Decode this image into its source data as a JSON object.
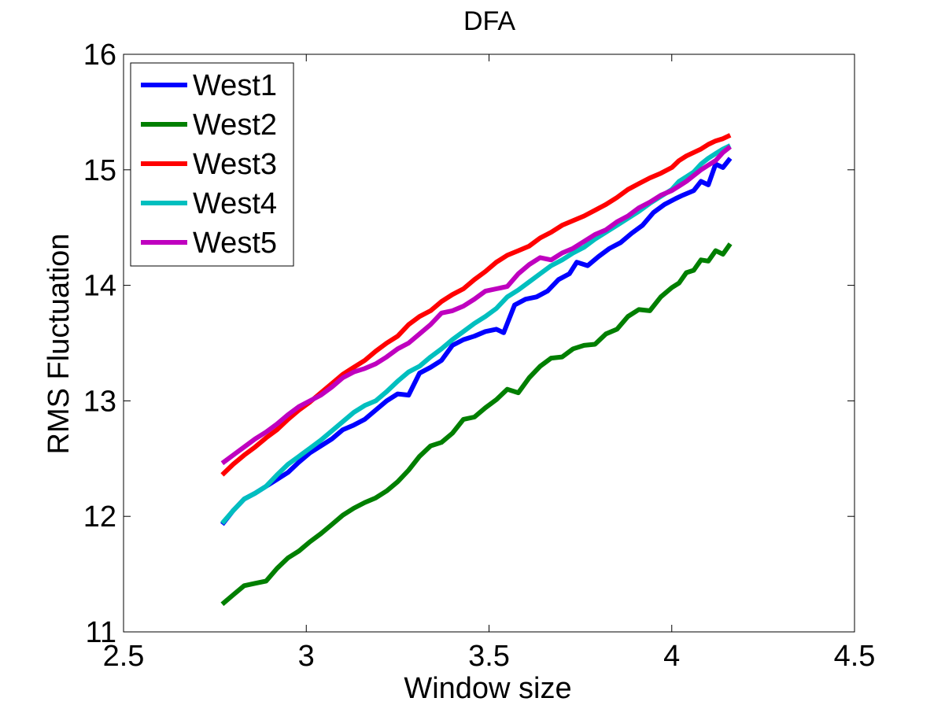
{
  "chart_data": {
    "type": "line",
    "title": "DFA",
    "xlabel": "Window size",
    "ylabel": "RMS Fluctuation",
    "xlim": [
      2.5,
      4.5
    ],
    "ylim": [
      11,
      16
    ],
    "xticks": [
      2.5,
      3,
      3.5,
      4,
      4.5
    ],
    "xtick_labels": [
      "2.5",
      "3",
      "3.5",
      "4",
      "4.5"
    ],
    "yticks": [
      11,
      12,
      13,
      14,
      15,
      16
    ],
    "ytick_labels": [
      "11",
      "12",
      "13",
      "14",
      "15",
      "16"
    ],
    "grid": false,
    "legend_position": "top-left",
    "series": [
      {
        "name": "West1",
        "color": "#0000FF",
        "points": [
          [
            2.77,
            11.93
          ],
          [
            2.8,
            12.05
          ],
          [
            2.83,
            12.15
          ],
          [
            2.86,
            12.2
          ],
          [
            2.89,
            12.26
          ],
          [
            2.92,
            12.32
          ],
          [
            2.95,
            12.38
          ],
          [
            2.98,
            12.47
          ],
          [
            3.01,
            12.55
          ],
          [
            3.04,
            12.61
          ],
          [
            3.07,
            12.67
          ],
          [
            3.1,
            12.75
          ],
          [
            3.13,
            12.79
          ],
          [
            3.16,
            12.84
          ],
          [
            3.19,
            12.92
          ],
          [
            3.22,
            13.0
          ],
          [
            3.25,
            13.06
          ],
          [
            3.28,
            13.05
          ],
          [
            3.31,
            13.24
          ],
          [
            3.34,
            13.29
          ],
          [
            3.37,
            13.35
          ],
          [
            3.4,
            13.48
          ],
          [
            3.43,
            13.53
          ],
          [
            3.46,
            13.56
          ],
          [
            3.49,
            13.6
          ],
          [
            3.52,
            13.62
          ],
          [
            3.54,
            13.59
          ],
          [
            3.57,
            13.83
          ],
          [
            3.6,
            13.88
          ],
          [
            3.63,
            13.9
          ],
          [
            3.66,
            13.95
          ],
          [
            3.69,
            14.05
          ],
          [
            3.72,
            14.1
          ],
          [
            3.74,
            14.2
          ],
          [
            3.77,
            14.17
          ],
          [
            3.8,
            14.25
          ],
          [
            3.83,
            14.32
          ],
          [
            3.86,
            14.37
          ],
          [
            3.89,
            14.45
          ],
          [
            3.92,
            14.52
          ],
          [
            3.95,
            14.63
          ],
          [
            3.98,
            14.7
          ],
          [
            4.01,
            14.75
          ],
          [
            4.03,
            14.78
          ],
          [
            4.06,
            14.82
          ],
          [
            4.08,
            14.9
          ],
          [
            4.1,
            14.87
          ],
          [
            4.12,
            15.05
          ],
          [
            4.14,
            15.02
          ],
          [
            4.16,
            15.1
          ]
        ]
      },
      {
        "name": "West2",
        "color": "#007F00",
        "points": [
          [
            2.77,
            11.24
          ],
          [
            2.8,
            11.32
          ],
          [
            2.83,
            11.4
          ],
          [
            2.86,
            11.42
          ],
          [
            2.89,
            11.44
          ],
          [
            2.92,
            11.55
          ],
          [
            2.95,
            11.64
          ],
          [
            2.98,
            11.7
          ],
          [
            3.01,
            11.78
          ],
          [
            3.04,
            11.85
          ],
          [
            3.07,
            11.93
          ],
          [
            3.1,
            12.01
          ],
          [
            3.13,
            12.07
          ],
          [
            3.16,
            12.12
          ],
          [
            3.19,
            12.16
          ],
          [
            3.22,
            12.22
          ],
          [
            3.25,
            12.3
          ],
          [
            3.28,
            12.4
          ],
          [
            3.31,
            12.52
          ],
          [
            3.34,
            12.61
          ],
          [
            3.37,
            12.64
          ],
          [
            3.4,
            12.72
          ],
          [
            3.43,
            12.84
          ],
          [
            3.46,
            12.86
          ],
          [
            3.49,
            12.94
          ],
          [
            3.52,
            13.01
          ],
          [
            3.55,
            13.1
          ],
          [
            3.58,
            13.07
          ],
          [
            3.61,
            13.2
          ],
          [
            3.64,
            13.3
          ],
          [
            3.67,
            13.37
          ],
          [
            3.7,
            13.38
          ],
          [
            3.73,
            13.45
          ],
          [
            3.76,
            13.48
          ],
          [
            3.79,
            13.49
          ],
          [
            3.82,
            13.58
          ],
          [
            3.85,
            13.62
          ],
          [
            3.88,
            13.73
          ],
          [
            3.91,
            13.79
          ],
          [
            3.94,
            13.78
          ],
          [
            3.97,
            13.9
          ],
          [
            4.0,
            13.98
          ],
          [
            4.02,
            14.02
          ],
          [
            4.04,
            14.11
          ],
          [
            4.06,
            14.13
          ],
          [
            4.08,
            14.22
          ],
          [
            4.1,
            14.21
          ],
          [
            4.12,
            14.3
          ],
          [
            4.14,
            14.27
          ],
          [
            4.16,
            14.36
          ]
        ]
      },
      {
        "name": "West3",
        "color": "#FF0000",
        "points": [
          [
            2.77,
            12.36
          ],
          [
            2.8,
            12.45
          ],
          [
            2.83,
            12.53
          ],
          [
            2.86,
            12.6
          ],
          [
            2.89,
            12.68
          ],
          [
            2.92,
            12.75
          ],
          [
            2.95,
            12.84
          ],
          [
            2.98,
            12.92
          ],
          [
            3.01,
            12.99
          ],
          [
            3.04,
            13.07
          ],
          [
            3.07,
            13.15
          ],
          [
            3.1,
            13.23
          ],
          [
            3.13,
            13.29
          ],
          [
            3.16,
            13.35
          ],
          [
            3.19,
            13.43
          ],
          [
            3.22,
            13.5
          ],
          [
            3.25,
            13.56
          ],
          [
            3.28,
            13.66
          ],
          [
            3.31,
            13.73
          ],
          [
            3.34,
            13.78
          ],
          [
            3.37,
            13.86
          ],
          [
            3.4,
            13.92
          ],
          [
            3.43,
            13.97
          ],
          [
            3.46,
            14.05
          ],
          [
            3.49,
            14.12
          ],
          [
            3.52,
            14.2
          ],
          [
            3.55,
            14.26
          ],
          [
            3.58,
            14.3
          ],
          [
            3.61,
            14.34
          ],
          [
            3.64,
            14.41
          ],
          [
            3.67,
            14.46
          ],
          [
            3.7,
            14.52
          ],
          [
            3.73,
            14.56
          ],
          [
            3.76,
            14.6
          ],
          [
            3.79,
            14.65
          ],
          [
            3.82,
            14.7
          ],
          [
            3.85,
            14.76
          ],
          [
            3.88,
            14.83
          ],
          [
            3.91,
            14.88
          ],
          [
            3.94,
            14.93
          ],
          [
            3.97,
            14.97
          ],
          [
            4.0,
            15.02
          ],
          [
            4.02,
            15.08
          ],
          [
            4.04,
            15.12
          ],
          [
            4.06,
            15.15
          ],
          [
            4.08,
            15.18
          ],
          [
            4.1,
            15.22
          ],
          [
            4.12,
            15.25
          ],
          [
            4.14,
            15.27
          ],
          [
            4.16,
            15.3
          ]
        ]
      },
      {
        "name": "West4",
        "color": "#00BFBF",
        "points": [
          [
            2.77,
            11.94
          ],
          [
            2.8,
            12.05
          ],
          [
            2.83,
            12.15
          ],
          [
            2.86,
            12.2
          ],
          [
            2.89,
            12.26
          ],
          [
            2.92,
            12.36
          ],
          [
            2.95,
            12.45
          ],
          [
            2.98,
            12.52
          ],
          [
            3.01,
            12.59
          ],
          [
            3.04,
            12.66
          ],
          [
            3.07,
            12.74
          ],
          [
            3.1,
            12.82
          ],
          [
            3.13,
            12.9
          ],
          [
            3.16,
            12.96
          ],
          [
            3.19,
            13.0
          ],
          [
            3.22,
            13.08
          ],
          [
            3.25,
            13.17
          ],
          [
            3.28,
            13.25
          ],
          [
            3.31,
            13.3
          ],
          [
            3.34,
            13.38
          ],
          [
            3.37,
            13.45
          ],
          [
            3.4,
            13.53
          ],
          [
            3.43,
            13.6
          ],
          [
            3.46,
            13.67
          ],
          [
            3.49,
            13.73
          ],
          [
            3.52,
            13.8
          ],
          [
            3.55,
            13.9
          ],
          [
            3.58,
            13.96
          ],
          [
            3.61,
            14.03
          ],
          [
            3.64,
            14.1
          ],
          [
            3.67,
            14.17
          ],
          [
            3.7,
            14.22
          ],
          [
            3.73,
            14.28
          ],
          [
            3.76,
            14.33
          ],
          [
            3.79,
            14.4
          ],
          [
            3.82,
            14.46
          ],
          [
            3.85,
            14.52
          ],
          [
            3.88,
            14.58
          ],
          [
            3.91,
            14.64
          ],
          [
            3.94,
            14.71
          ],
          [
            3.97,
            14.77
          ],
          [
            4.0,
            14.83
          ],
          [
            4.02,
            14.9
          ],
          [
            4.04,
            14.94
          ],
          [
            4.06,
            14.98
          ],
          [
            4.08,
            15.05
          ],
          [
            4.1,
            15.1
          ],
          [
            4.12,
            15.14
          ],
          [
            4.14,
            15.18
          ],
          [
            4.16,
            15.21
          ]
        ]
      },
      {
        "name": "West5",
        "color": "#BF00BF",
        "points": [
          [
            2.77,
            12.46
          ],
          [
            2.8,
            12.53
          ],
          [
            2.83,
            12.6
          ],
          [
            2.86,
            12.67
          ],
          [
            2.89,
            12.73
          ],
          [
            2.92,
            12.8
          ],
          [
            2.95,
            12.88
          ],
          [
            2.98,
            12.95
          ],
          [
            3.01,
            13.0
          ],
          [
            3.04,
            13.05
          ],
          [
            3.07,
            13.12
          ],
          [
            3.1,
            13.2
          ],
          [
            3.13,
            13.25
          ],
          [
            3.16,
            13.28
          ],
          [
            3.19,
            13.32
          ],
          [
            3.22,
            13.38
          ],
          [
            3.25,
            13.45
          ],
          [
            3.28,
            13.5
          ],
          [
            3.31,
            13.58
          ],
          [
            3.34,
            13.66
          ],
          [
            3.37,
            13.76
          ],
          [
            3.4,
            13.78
          ],
          [
            3.43,
            13.82
          ],
          [
            3.46,
            13.88
          ],
          [
            3.49,
            13.95
          ],
          [
            3.52,
            13.97
          ],
          [
            3.55,
            13.99
          ],
          [
            3.58,
            14.1
          ],
          [
            3.61,
            14.18
          ],
          [
            3.64,
            14.24
          ],
          [
            3.67,
            14.22
          ],
          [
            3.7,
            14.28
          ],
          [
            3.73,
            14.32
          ],
          [
            3.76,
            14.38
          ],
          [
            3.79,
            14.44
          ],
          [
            3.82,
            14.48
          ],
          [
            3.85,
            14.55
          ],
          [
            3.88,
            14.6
          ],
          [
            3.91,
            14.67
          ],
          [
            3.94,
            14.72
          ],
          [
            3.97,
            14.78
          ],
          [
            4.0,
            14.82
          ],
          [
            4.02,
            14.86
          ],
          [
            4.04,
            14.9
          ],
          [
            4.06,
            14.95
          ],
          [
            4.08,
            15.0
          ],
          [
            4.1,
            15.04
          ],
          [
            4.12,
            15.08
          ],
          [
            4.14,
            15.15
          ],
          [
            4.16,
            15.2
          ]
        ]
      }
    ]
  }
}
